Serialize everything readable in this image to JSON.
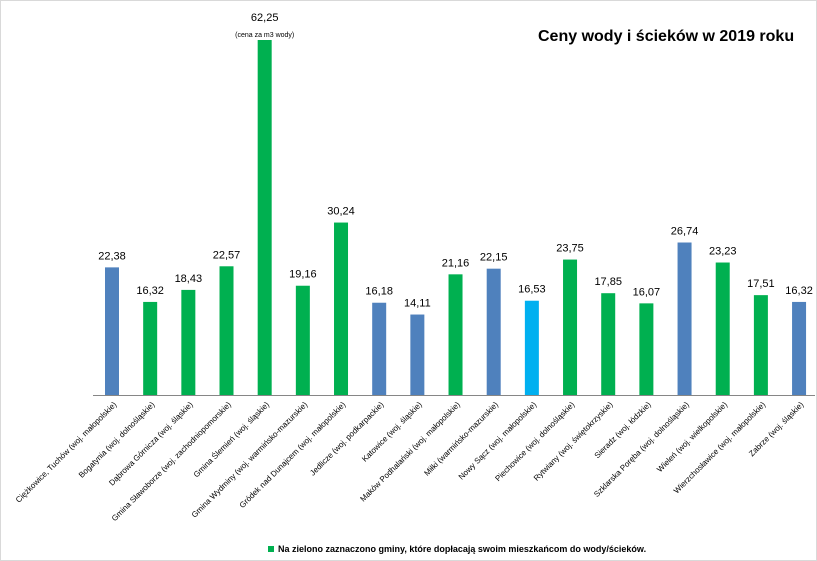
{
  "chart_data": {
    "type": "bar",
    "title": "Ceny wody i ścieków w 2019 roku",
    "annotations": [
      "(cena za m3 wody)"
    ],
    "legend": {
      "label": "Na zielono zaznaczono gminy, które dopłacają swoim mieszkańcom do wody/ścieków.",
      "color": "#00b050",
      "placement": "bottom"
    },
    "colors": {
      "blue": "#4f81bd",
      "green": "#00b050",
      "cyan": "#00b0f0"
    },
    "categories": [
      "Ciężkowice, Tuchów (woj. małopolskie)",
      "Bogatynia (woj. dolnośląskie)",
      "Dąbrowa Górnicza (woj. śląskie)",
      "Gmina Sławoborze (woj. zachodniopomorskie)",
      "Gmina Ślemień (woj. śląskie)",
      "Gmina Wydminy (woj. warmińsko-mazurskie)",
      "Gródek nad Dunajcem (woj. małopolskie)",
      "Jedlicze (woj. podkarpackie)",
      "Katowice (woj. śląskie)",
      "Maków Podhalański (woj. małopolskie)",
      "Miłki (warmińsko-mazurskie)",
      "Nowy Sącz (woj. małopolskie)",
      "Piechowice (woj. dolnośląskie)",
      "Rytwiany (woj. świętokrzyskie)",
      "Sieradz (woj. łódzkie)",
      "Szklarska Poręba (woj. dolnośląskie)",
      "Wieleń (woj. wielkopolskie)",
      "Wierzchosławice (woj. małopolskie)",
      "Zabrze (woj. śląskie)"
    ],
    "values": [
      22.38,
      16.32,
      18.43,
      22.57,
      62.25,
      19.16,
      30.24,
      16.18,
      14.11,
      21.16,
      22.15,
      16.53,
      23.75,
      17.85,
      16.07,
      26.74,
      23.23,
      17.51,
      16.32
    ],
    "value_labels": [
      "22,38",
      "16,32",
      "18,43",
      "22,57",
      "62,25",
      "19,16",
      "30,24",
      "16,18",
      "14,11",
      "21,16",
      "22,15",
      "16,53",
      "23,75",
      "17,85",
      "16,07",
      "26,74",
      "23,23",
      "17,51",
      "16,32"
    ],
    "bar_colors": [
      "blue",
      "green",
      "green",
      "green",
      "green",
      "green",
      "green",
      "blue",
      "blue",
      "green",
      "blue",
      "cyan",
      "green",
      "green",
      "green",
      "blue",
      "green",
      "green",
      "blue"
    ],
    "xlabel": "",
    "ylabel": "",
    "ylim": [
      0,
      62.25
    ],
    "grid": false
  }
}
